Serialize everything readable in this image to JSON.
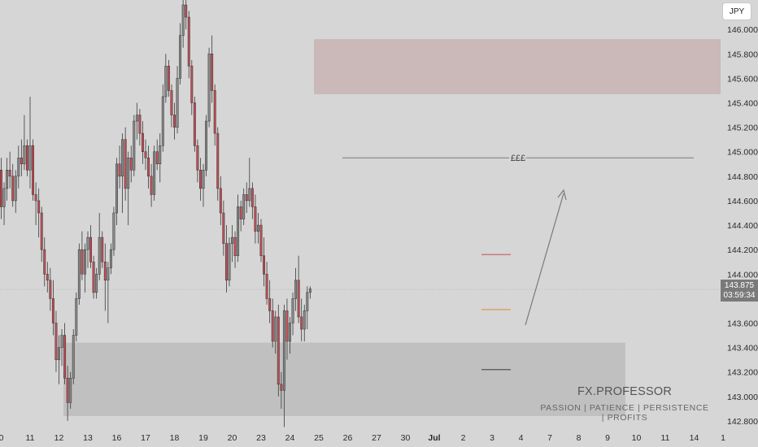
{
  "chart_data": {
    "type": "candlestick",
    "currency": "JPY",
    "ylim": [
      142.72,
      146.24
    ],
    "y_ticks": [
      {
        "v": 146.0,
        "label": "146.000"
      },
      {
        "v": 145.8,
        "label": "145.800"
      },
      {
        "v": 145.6,
        "label": "145.600"
      },
      {
        "v": 145.4,
        "label": "145.400"
      },
      {
        "v": 145.2,
        "label": "145.200"
      },
      {
        "v": 145.0,
        "label": "145.000"
      },
      {
        "v": 144.8,
        "label": "144.800"
      },
      {
        "v": 144.6,
        "label": "144.600"
      },
      {
        "v": 144.4,
        "label": "144.400"
      },
      {
        "v": 144.2,
        "label": "144.200"
      },
      {
        "v": 144.0,
        "label": "144.000"
      },
      {
        "v": 143.6,
        "label": "143.600"
      },
      {
        "v": 143.4,
        "label": "143.400"
      },
      {
        "v": 143.2,
        "label": "143.200"
      },
      {
        "v": 143.0,
        "label": "143.000"
      },
      {
        "v": 142.8,
        "label": "142.800"
      }
    ],
    "x_ticks": [
      {
        "i": 0,
        "label": "0",
        "bold": false
      },
      {
        "i": 10,
        "label": "11",
        "bold": false
      },
      {
        "i": 20,
        "label": "12",
        "bold": false
      },
      {
        "i": 30,
        "label": "13",
        "bold": false
      },
      {
        "i": 40,
        "label": "16",
        "bold": false
      },
      {
        "i": 50,
        "label": "17",
        "bold": false
      },
      {
        "i": 60,
        "label": "18",
        "bold": false
      },
      {
        "i": 70,
        "label": "19",
        "bold": false
      },
      {
        "i": 80,
        "label": "20",
        "bold": false
      },
      {
        "i": 90,
        "label": "23",
        "bold": false
      },
      {
        "i": 100,
        "label": "24",
        "bold": false
      },
      {
        "i": 110,
        "label": "25",
        "bold": false
      },
      {
        "i": 120,
        "label": "26",
        "bold": false
      },
      {
        "i": 130,
        "label": "27",
        "bold": false
      },
      {
        "i": 140,
        "label": "30",
        "bold": false
      },
      {
        "i": 150,
        "label": "Jul",
        "bold": true
      },
      {
        "i": 160,
        "label": "2",
        "bold": false
      },
      {
        "i": 170,
        "label": "3",
        "bold": false
      },
      {
        "i": 180,
        "label": "4",
        "bold": false
      },
      {
        "i": 190,
        "label": "7",
        "bold": false
      },
      {
        "i": 200,
        "label": "8",
        "bold": false
      },
      {
        "i": 210,
        "label": "9",
        "bold": false
      },
      {
        "i": 220,
        "label": "10",
        "bold": false
      },
      {
        "i": 230,
        "label": "11",
        "bold": false
      },
      {
        "i": 240,
        "label": "14",
        "bold": false
      },
      {
        "i": 250,
        "label": "1",
        "bold": false
      }
    ],
    "ohlc": [
      [
        144.85,
        144.95,
        144.45,
        144.55
      ],
      [
        144.55,
        144.75,
        144.4,
        144.7
      ],
      [
        144.7,
        144.95,
        144.6,
        144.85
      ],
      [
        144.85,
        145.0,
        144.7,
        144.8
      ],
      [
        144.8,
        144.9,
        144.55,
        144.6
      ],
      [
        144.6,
        144.85,
        144.5,
        144.8
      ],
      [
        144.8,
        145.05,
        144.7,
        144.95
      ],
      [
        144.95,
        145.1,
        144.8,
        144.9
      ],
      [
        144.9,
        145.3,
        144.85,
        145.05
      ],
      [
        145.05,
        145.1,
        144.8,
        144.85
      ],
      [
        144.85,
        145.45,
        144.7,
        145.05
      ],
      [
        145.05,
        145.1,
        144.6,
        144.65
      ],
      [
        144.65,
        144.75,
        144.4,
        144.6
      ],
      [
        144.6,
        144.7,
        144.3,
        144.5
      ],
      [
        144.5,
        144.55,
        144.1,
        144.2
      ],
      [
        144.2,
        144.3,
        143.9,
        144.0
      ],
      [
        144.0,
        144.1,
        143.85,
        143.95
      ],
      [
        143.95,
        144.05,
        143.7,
        143.8
      ],
      [
        143.8,
        143.95,
        143.5,
        143.6
      ],
      [
        143.6,
        143.7,
        143.2,
        143.3
      ],
      [
        143.3,
        143.5,
        143.1,
        143.4
      ],
      [
        143.4,
        143.55,
        143.25,
        143.5
      ],
      [
        143.5,
        143.6,
        143.1,
        143.15
      ],
      [
        143.15,
        143.25,
        142.8,
        142.95
      ],
      [
        142.95,
        143.2,
        142.9,
        143.15
      ],
      [
        143.15,
        143.55,
        143.1,
        143.5
      ],
      [
        143.5,
        143.85,
        143.45,
        143.8
      ],
      [
        143.8,
        144.25,
        143.75,
        144.2
      ],
      [
        144.2,
        144.35,
        143.95,
        144.0
      ],
      [
        144.0,
        144.25,
        143.85,
        144.2
      ],
      [
        144.2,
        144.35,
        144.05,
        144.3
      ],
      [
        144.3,
        144.4,
        144.05,
        144.1
      ],
      [
        144.1,
        144.15,
        143.8,
        143.85
      ],
      [
        143.85,
        144.05,
        143.8,
        144.0
      ],
      [
        144.0,
        144.5,
        143.95,
        144.3
      ],
      [
        144.3,
        144.35,
        144.05,
        144.1
      ],
      [
        144.1,
        144.25,
        143.7,
        143.95
      ],
      [
        143.95,
        144.1,
        143.6,
        144.05
      ],
      [
        144.05,
        144.25,
        144.0,
        144.2
      ],
      [
        144.2,
        144.55,
        144.15,
        144.5
      ],
      [
        144.5,
        144.95,
        144.4,
        144.9
      ],
      [
        144.9,
        145.05,
        144.7,
        144.8
      ],
      [
        144.8,
        145.15,
        144.5,
        145.1
      ],
      [
        145.1,
        145.2,
        144.6,
        144.7
      ],
      [
        144.7,
        145.0,
        144.4,
        144.95
      ],
      [
        144.95,
        145.05,
        144.75,
        144.85
      ],
      [
        144.85,
        145.3,
        144.8,
        145.25
      ],
      [
        145.25,
        145.4,
        145.1,
        145.3
      ],
      [
        145.3,
        145.35,
        145.05,
        145.15
      ],
      [
        145.15,
        145.25,
        144.9,
        145.0
      ],
      [
        145.0,
        145.1,
        144.85,
        144.95
      ],
      [
        144.95,
        145.05,
        144.7,
        144.8
      ],
      [
        144.8,
        144.9,
        144.55,
        144.65
      ],
      [
        144.65,
        145.05,
        144.6,
        145.0
      ],
      [
        145.0,
        145.1,
        144.85,
        144.9
      ],
      [
        144.9,
        145.15,
        144.75,
        145.05
      ],
      [
        145.05,
        145.55,
        145.0,
        145.45
      ],
      [
        145.45,
        145.8,
        145.4,
        145.7
      ],
      [
        145.7,
        145.75,
        145.45,
        145.5
      ],
      [
        145.5,
        145.55,
        145.2,
        145.3
      ],
      [
        145.3,
        145.4,
        145.1,
        145.2
      ],
      [
        145.2,
        145.7,
        145.15,
        145.6
      ],
      [
        145.6,
        146.05,
        145.55,
        145.95
      ],
      [
        145.95,
        146.25,
        145.85,
        146.2
      ],
      [
        146.2,
        146.3,
        146.0,
        146.1
      ],
      [
        146.1,
        146.15,
        145.6,
        145.7
      ],
      [
        145.7,
        145.75,
        145.3,
        145.4
      ],
      [
        145.4,
        145.45,
        145.0,
        145.05
      ],
      [
        145.05,
        145.1,
        144.75,
        144.85
      ],
      [
        144.85,
        144.95,
        144.6,
        144.7
      ],
      [
        144.7,
        144.9,
        144.55,
        144.85
      ],
      [
        144.85,
        145.3,
        144.8,
        145.25
      ],
      [
        145.25,
        145.85,
        145.2,
        145.8
      ],
      [
        145.8,
        145.95,
        145.4,
        145.5
      ],
      [
        145.5,
        145.55,
        145.05,
        145.15
      ],
      [
        145.15,
        145.2,
        144.6,
        144.7
      ],
      [
        144.7,
        144.8,
        144.4,
        144.5
      ],
      [
        144.5,
        144.6,
        144.15,
        144.25
      ],
      [
        144.25,
        144.4,
        143.85,
        143.95
      ],
      [
        143.95,
        144.3,
        143.9,
        144.25
      ],
      [
        144.25,
        144.4,
        144.1,
        144.3
      ],
      [
        144.3,
        144.35,
        144.05,
        144.15
      ],
      [
        144.15,
        144.65,
        144.1,
        144.55
      ],
      [
        144.55,
        144.6,
        144.35,
        144.45
      ],
      [
        144.45,
        144.7,
        144.4,
        144.65
      ],
      [
        144.65,
        144.75,
        144.5,
        144.6
      ],
      [
        144.6,
        144.95,
        144.55,
        144.7
      ],
      [
        144.7,
        144.75,
        144.45,
        144.55
      ],
      [
        144.55,
        144.65,
        144.25,
        144.35
      ],
      [
        144.35,
        144.5,
        144.25,
        144.4
      ],
      [
        144.4,
        144.45,
        144.1,
        144.15
      ],
      [
        144.15,
        144.3,
        143.9,
        144.0
      ],
      [
        144.0,
        144.1,
        143.75,
        143.8
      ],
      [
        143.8,
        143.95,
        143.6,
        143.7
      ],
      [
        143.7,
        143.8,
        143.4,
        143.45
      ],
      [
        143.45,
        143.7,
        143.35,
        143.65
      ],
      [
        143.65,
        143.75,
        143.0,
        143.1
      ],
      [
        143.1,
        143.2,
        142.9,
        143.05
      ],
      [
        143.05,
        143.75,
        142.75,
        143.7
      ],
      [
        143.7,
        143.8,
        143.3,
        143.45
      ],
      [
        143.45,
        143.65,
        143.35,
        143.6
      ],
      [
        143.6,
        143.85,
        143.5,
        143.8
      ],
      [
        143.8,
        144.05,
        143.7,
        143.95
      ],
      [
        143.95,
        144.15,
        143.6,
        143.65
      ],
      [
        143.65,
        143.8,
        143.45,
        143.55
      ],
      [
        143.55,
        143.75,
        143.45,
        143.7
      ],
      [
        143.7,
        143.9,
        143.55,
        143.85
      ],
      [
        143.85,
        143.9,
        143.8,
        143.88
      ]
    ],
    "zones": [
      {
        "name": "supply-zone",
        "y0": 145.47,
        "y1": 145.92,
        "color": "#c9b3b3"
      },
      {
        "name": "demand-zone",
        "y0": 142.84,
        "y1": 143.44,
        "color": "#bcbcbc"
      }
    ],
    "liquidity_level": 144.95,
    "liquidity_label": "£££",
    "level_markers": [
      {
        "name": "resistance-marker",
        "v": 144.16,
        "color": "#c85a60"
      },
      {
        "name": "midline-marker",
        "v": 143.71,
        "color": "#e09040"
      },
      {
        "name": "support-marker",
        "v": 143.22,
        "color": "#555555"
      }
    ],
    "current_price": 143.875,
    "current_price_label": "143.875",
    "countdown_label": "03:59:34",
    "colors": {
      "up": "#8a8a8a",
      "down": "#c54d57",
      "wick": "#3a3a3a",
      "background": "#d6d6d6"
    }
  },
  "branding": {
    "name": "FX.PROFESSOR",
    "tagline": "PASSION  |  PATIENCE  |  PERSISTENCE | PROFITS"
  }
}
